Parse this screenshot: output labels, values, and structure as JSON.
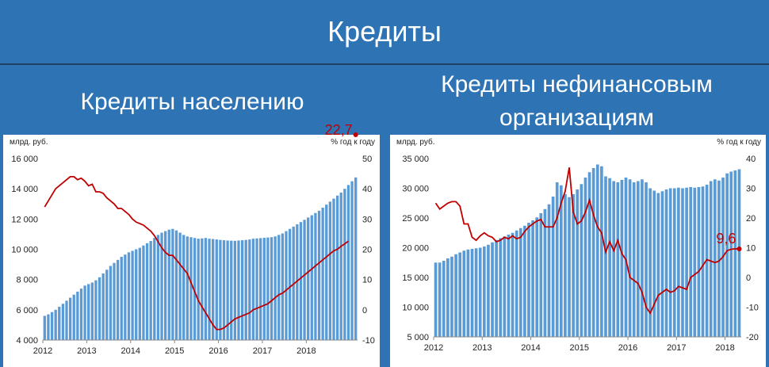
{
  "page": {
    "title": "Кредиты",
    "left_subtitle": "Кредиты населению",
    "right_subtitle_line1": "Кредиты нефинансовым",
    "right_subtitle_line2": "организациям"
  },
  "colors": {
    "background": "#2e74b5",
    "bar": "#5b9bd5",
    "line": "#c00000",
    "panel": "#ffffff"
  },
  "chart_data": [
    {
      "type": "bar",
      "ylabel": "млрд. руб.",
      "y2label": "% год к году",
      "ylim": [
        4000,
        16000
      ],
      "y2lim": [
        -10,
        50
      ],
      "yticks": [
        "4 000",
        "6 000",
        "8 000",
        "10 000",
        "12 000",
        "14 000",
        "16 000"
      ],
      "y2ticks": [
        "-10",
        "0",
        "10",
        "20",
        "30",
        "40",
        "50"
      ],
      "xticks": [
        "2012",
        "2013",
        "2014",
        "2015",
        "2016",
        "2017",
        "2018"
      ],
      "grid": false,
      "annotation": "22,7",
      "series": [
        {
          "values": [
            5600,
            5700,
            5850,
            6000,
            6200,
            6400,
            6600,
            6800,
            7000,
            7200,
            7400,
            7600,
            7700,
            7800,
            7950,
            8150,
            8400,
            8650,
            8900,
            9100,
            9300,
            9500,
            9650,
            9800,
            9900,
            10000,
            10100,
            10250,
            10400,
            10550,
            10750,
            10950,
            11100,
            11200,
            11300,
            11350,
            11250,
            11100,
            10950,
            10850,
            10800,
            10750,
            10700,
            10720,
            10750,
            10700,
            10680,
            10650,
            10620,
            10600,
            10580,
            10570,
            10560,
            10580,
            10600,
            10620,
            10650,
            10700,
            10720,
            10740,
            10760,
            10780,
            10800,
            10850,
            10950,
            11050,
            11200,
            11350,
            11500,
            11650,
            11800,
            11950,
            12100,
            12250,
            12400,
            12550,
            12750,
            12950,
            13150,
            13350,
            13550,
            13750,
            14000,
            14250,
            14500,
            14750
          ]
        },
        {
          "values": [
            34,
            36,
            38,
            40,
            41,
            42,
            43,
            44,
            44,
            43,
            43.5,
            42.5,
            41,
            41.5,
            39,
            39,
            38.5,
            37,
            36,
            35,
            33.5,
            33.5,
            32.5,
            31.5,
            30,
            29,
            28.5,
            28,
            27,
            26,
            24.5,
            22.5,
            20.5,
            19,
            18,
            18,
            16.5,
            15,
            13.5,
            12,
            9,
            6,
            3,
            1,
            -1,
            -3,
            -5,
            -6.5,
            -6.5,
            -6,
            -5,
            -4,
            -3,
            -2.5,
            -2,
            -1.5,
            -1,
            0,
            0.5,
            1,
            1.5,
            2,
            3,
            4,
            5,
            5.5,
            6.5,
            7.5,
            8.5,
            9.5,
            10.5,
            11.5,
            12.5,
            13.5,
            14.5,
            15.5,
            16.5,
            17.5,
            18.5,
            19.5,
            20,
            21,
            21.8,
            22.7
          ]
        }
      ]
    },
    {
      "type": "bar",
      "ylabel": "млрд. руб.",
      "y2label": "% год к году",
      "ylim": [
        5000,
        35000
      ],
      "y2lim": [
        -20,
        40
      ],
      "yticks": [
        "5 000",
        "10 000",
        "15 000",
        "20 000",
        "25 000",
        "30 000",
        "35 000"
      ],
      "y2ticks": [
        "-20",
        "-10",
        "0",
        "10",
        "20",
        "30",
        "40"
      ],
      "xticks": [
        "2012",
        "2013",
        "2014",
        "2015",
        "2016",
        "2017",
        "2018"
      ],
      "grid": false,
      "annotation": "9,6",
      "series": [
        {
          "values": [
            17500,
            17500,
            17800,
            18200,
            18500,
            18900,
            19200,
            19500,
            19700,
            19800,
            19900,
            20000,
            20200,
            20500,
            20900,
            21300,
            21600,
            21900,
            22200,
            22500,
            22900,
            23300,
            23700,
            24200,
            24600,
            25100,
            25800,
            26500,
            27300,
            28600,
            31000,
            30500,
            29000,
            28500,
            29000,
            29800,
            30700,
            31800,
            32700,
            33400,
            34000,
            33700,
            32000,
            31700,
            31200,
            31000,
            31400,
            31800,
            31500,
            31000,
            31200,
            31500,
            31000,
            30000,
            29600,
            29200,
            29500,
            29800,
            30000,
            30000,
            30100,
            30000,
            30100,
            30200,
            30100,
            30200,
            30300,
            30600,
            31200,
            31500,
            31300,
            31800,
            32500,
            32800,
            33000,
            33200
          ]
        },
        {
          "values": [
            25,
            23,
            24,
            25,
            25.5,
            25.5,
            24,
            18,
            18,
            13.5,
            12.5,
            14,
            15,
            14,
            13.5,
            12,
            12.5,
            13.5,
            13,
            14,
            13,
            13.5,
            15.5,
            17,
            18,
            19,
            19.5,
            17,
            17,
            17,
            20,
            25,
            29,
            37,
            22,
            18,
            19,
            22,
            26,
            21,
            17,
            15,
            8.5,
            12,
            9,
            12.5,
            8,
            6,
            0,
            -1,
            -2,
            -5,
            -10,
            -12,
            -9,
            -6,
            -5,
            -4,
            -5,
            -4.5,
            -3,
            -3.5,
            -4,
            0,
            1,
            2,
            4,
            6,
            5.5,
            5,
            5.5,
            7,
            9,
            9.5,
            9.6,
            9.6
          ]
        }
      ]
    }
  ]
}
